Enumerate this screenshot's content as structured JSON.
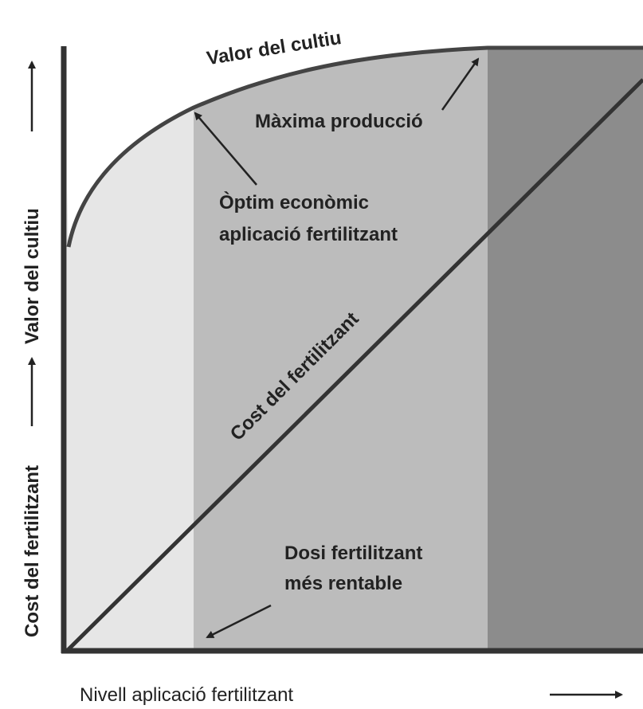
{
  "labels": {
    "curve": "Valor del cultiu",
    "max_production": "Màxima producció",
    "optimum": [
      "Òptim econòmic",
      "aplicació fertilitzant"
    ],
    "cost_line": "Cost del fertilitzant",
    "best_dose": [
      "Dosi fertilitzant",
      "més rentable"
    ],
    "y_axis": [
      "Cost del fertilitzant",
      "Valor del cultiu"
    ],
    "x_axis": "Nivell aplicació fertilitzant"
  }
}
